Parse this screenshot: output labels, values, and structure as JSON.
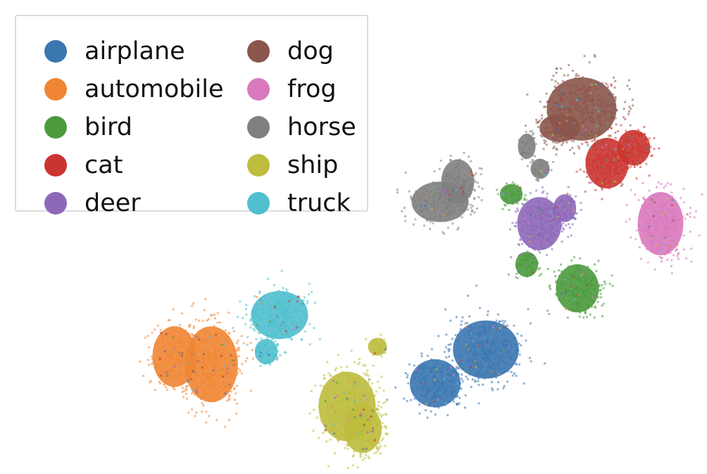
{
  "chart_data": {
    "type": "scatter",
    "title": "",
    "xlabel": "",
    "ylabel": "",
    "axes_visible": false,
    "grid": false,
    "legend_position": "top-left",
    "legend_columns": 2,
    "series": [
      {
        "name": "airplane",
        "color": "#3a76b0",
        "clusters": [
          {
            "x": 618,
            "y": 545,
            "rx": 40,
            "ry": 38
          },
          {
            "x": 690,
            "y": 497,
            "rx": 52,
            "ry": 46
          }
        ]
      },
      {
        "name": "automobile",
        "color": "#f08634",
        "clusters": [
          {
            "x": 248,
            "y": 507,
            "rx": 35,
            "ry": 48
          },
          {
            "x": 300,
            "y": 518,
            "rx": 42,
            "ry": 60
          }
        ]
      },
      {
        "name": "bird",
        "color": "#4b9a3e",
        "clusters": [
          {
            "x": 726,
            "y": 276,
            "rx": 18,
            "ry": 16
          },
          {
            "x": 748,
            "y": 376,
            "rx": 18,
            "ry": 20
          },
          {
            "x": 820,
            "y": 410,
            "rx": 34,
            "ry": 38
          }
        ]
      },
      {
        "name": "cat",
        "color": "#cb3531",
        "clusters": [
          {
            "x": 862,
            "y": 232,
            "rx": 34,
            "ry": 40
          },
          {
            "x": 900,
            "y": 210,
            "rx": 26,
            "ry": 28
          }
        ]
      },
      {
        "name": "deer",
        "color": "#8e68b8",
        "clusters": [
          {
            "x": 766,
            "y": 318,
            "rx": 35,
            "ry": 42
          },
          {
            "x": 802,
            "y": 296,
            "rx": 18,
            "ry": 22
          }
        ]
      },
      {
        "name": "dog",
        "color": "#8b564b",
        "clusters": [
          {
            "x": 826,
            "y": 155,
            "rx": 55,
            "ry": 50
          },
          {
            "x": 795,
            "y": 182,
            "rx": 32,
            "ry": 22
          }
        ]
      },
      {
        "name": "frog",
        "color": "#d979bd",
        "clusters": [
          {
            "x": 938,
            "y": 318,
            "rx": 36,
            "ry": 50
          }
        ]
      },
      {
        "name": "horse",
        "color": "#7f7f7f",
        "clusters": [
          {
            "x": 625,
            "y": 287,
            "rx": 45,
            "ry": 32
          },
          {
            "x": 650,
            "y": 258,
            "rx": 26,
            "ry": 35
          },
          {
            "x": 748,
            "y": 208,
            "rx": 14,
            "ry": 20
          },
          {
            "x": 767,
            "y": 240,
            "rx": 15,
            "ry": 16
          }
        ]
      },
      {
        "name": "ship",
        "color": "#bebd3e",
        "clusters": [
          {
            "x": 493,
            "y": 578,
            "rx": 45,
            "ry": 55
          },
          {
            "x": 515,
            "y": 610,
            "rx": 30,
            "ry": 38
          },
          {
            "x": 536,
            "y": 493,
            "rx": 15,
            "ry": 14
          }
        ]
      },
      {
        "name": "truck",
        "color": "#50bfce",
        "clusters": [
          {
            "x": 397,
            "y": 448,
            "rx": 45,
            "ry": 38
          },
          {
            "x": 378,
            "y": 500,
            "rx": 18,
            "ry": 20
          }
        ]
      }
    ]
  }
}
